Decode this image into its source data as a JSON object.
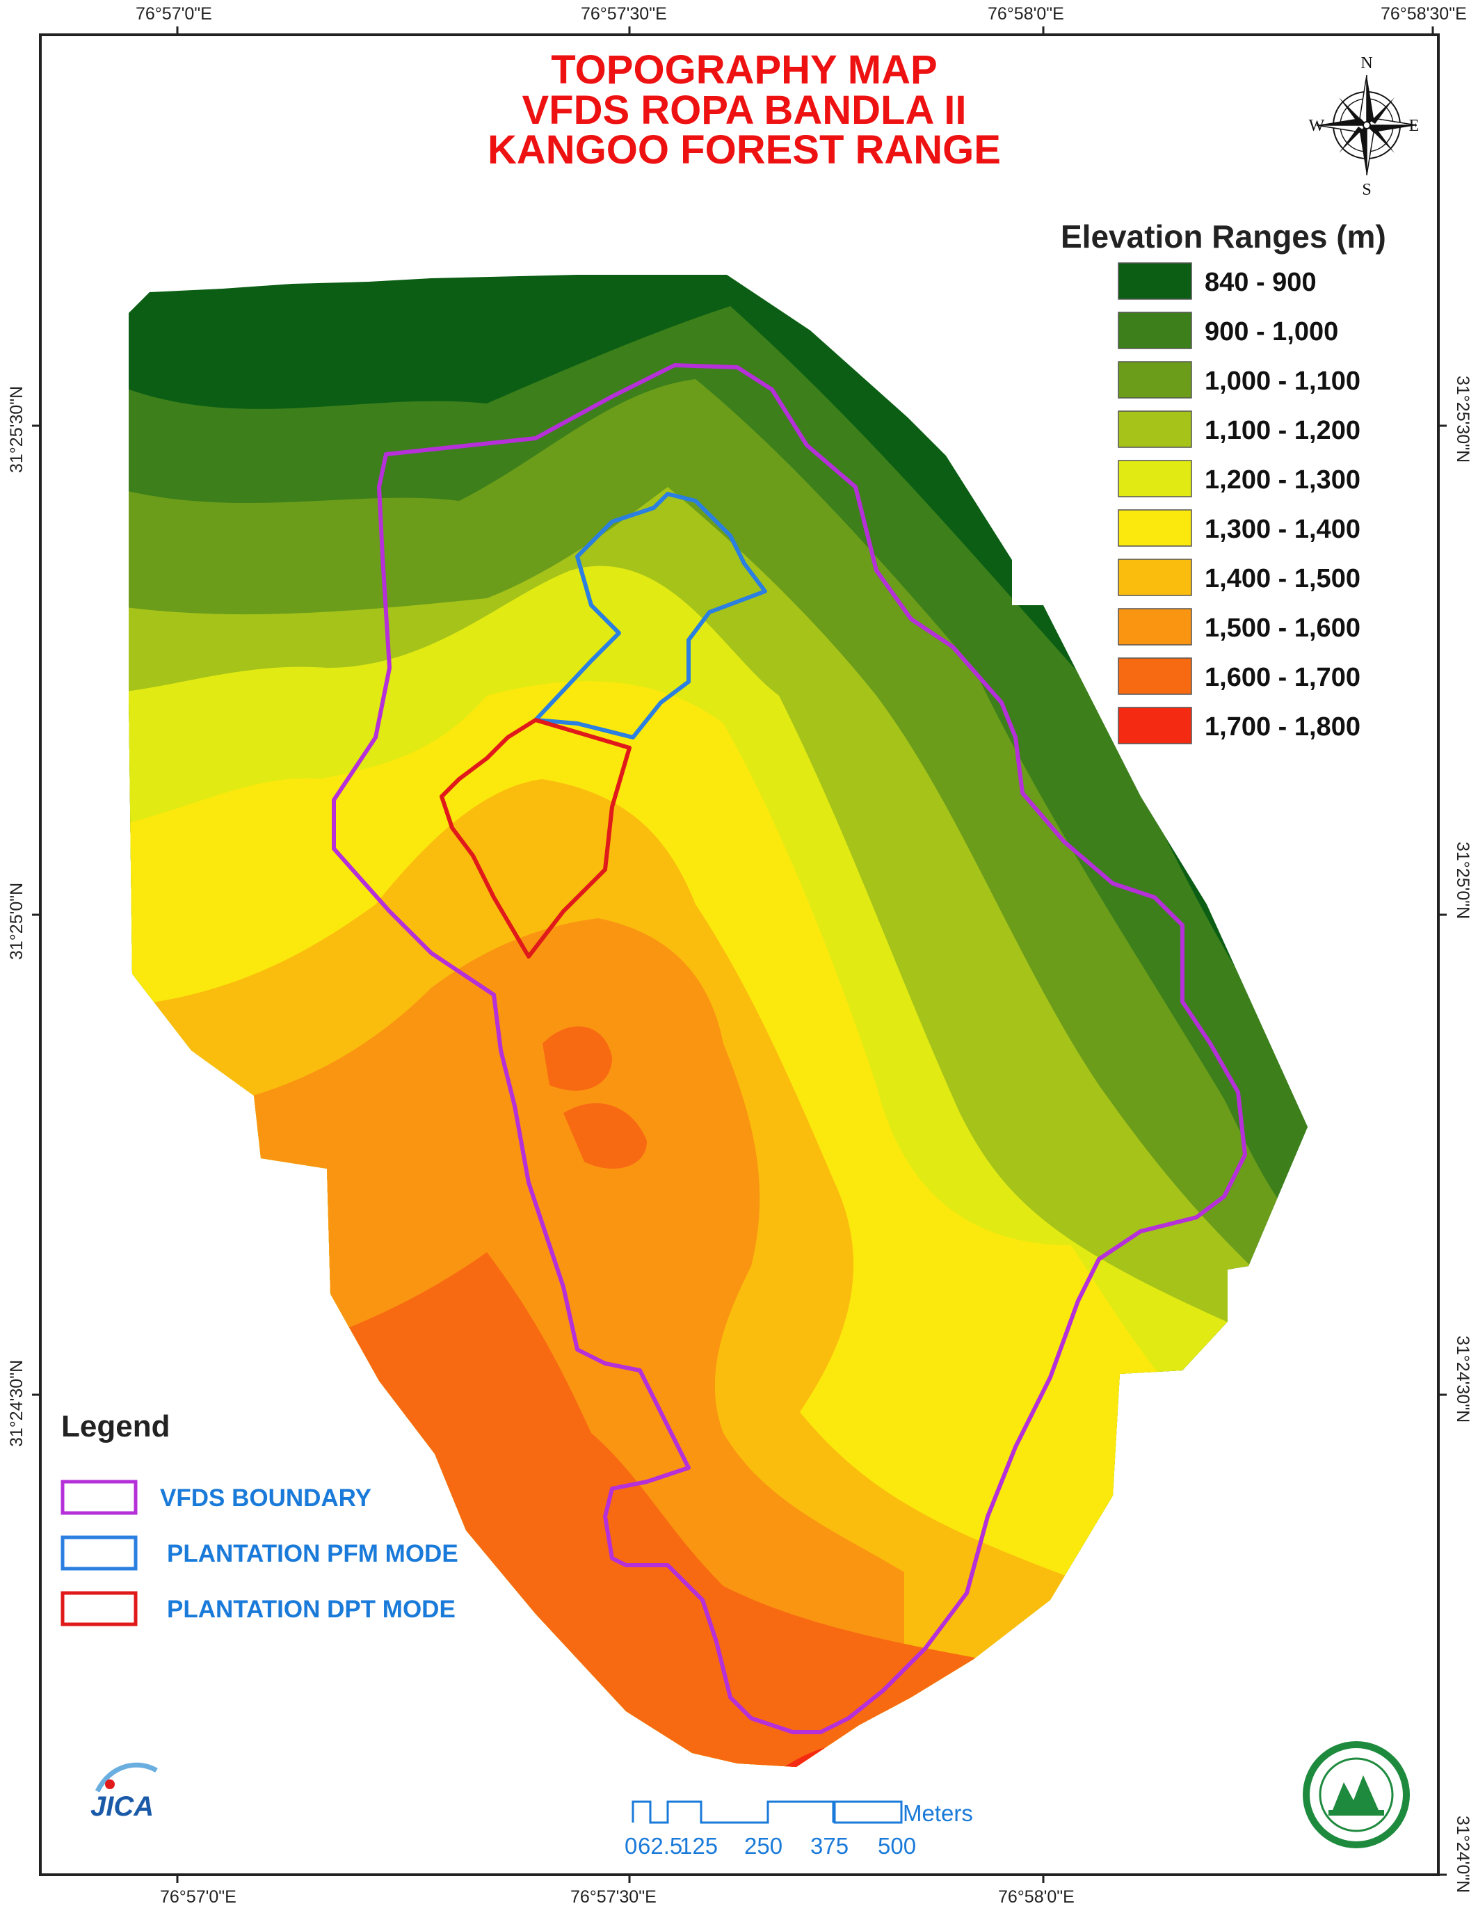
{
  "title": {
    "line1": "TOPOGRAPHY MAP",
    "line2": "VFDS ROPA BANDLA  II",
    "line3": "KANGOO FOREST RANGE"
  },
  "coordinates": {
    "top": [
      "76°57'0\"E",
      "76°57'30\"E",
      "76°58'0\"E",
      "76°58'30\"E"
    ],
    "bottom": [
      "76°57'0\"E",
      "76°57'30\"E",
      "76°58'0\"E"
    ],
    "left": [
      "31°25'30\"N",
      "31°25'0\"N",
      "31°24'30\"N"
    ],
    "right": [
      "31°25'30\"N",
      "31°25'0\"N",
      "31°24'30\"N",
      "31°24'0\"N"
    ]
  },
  "compass": {
    "north": "N",
    "south": "S",
    "east": "E",
    "west": "W"
  },
  "elevation_legend": {
    "heading": "Elevation Ranges (m)",
    "classes": [
      {
        "label": "840 - 900",
        "color": "#0b5e14"
      },
      {
        "label": "900 - 1,000",
        "color": "#3c7f1b"
      },
      {
        "label": "1,000 - 1,100",
        "color": "#6b9d1a"
      },
      {
        "label": "1,100 - 1,200",
        "color": "#a6c31a"
      },
      {
        "label": "1,200 - 1,300",
        "color": "#e1ea12"
      },
      {
        "label": "1,300 - 1,400",
        "color": "#fbe90e"
      },
      {
        "label": "1,400 - 1,500",
        "color": "#fbbd0d"
      },
      {
        "label": "1,500 - 1,600",
        "color": "#fa9512"
      },
      {
        "label": "1,600 - 1,700",
        "color": "#f86a12"
      },
      {
        "label": "1,700 - 1,800",
        "color": "#f52a12"
      }
    ]
  },
  "legend": {
    "heading": "Legend",
    "items": [
      {
        "label": "VFDS BOUNDARY",
        "color": "#b530d8"
      },
      {
        "label": "PLANTATION PFM MODE",
        "color": "#2a7fe0"
      },
      {
        "label": "PLANTATION DPT MODE",
        "color": "#e01a1a"
      }
    ]
  },
  "scale_bar": {
    "unit": "Meters",
    "ticks": [
      "0",
      "62.5",
      "125",
      "250",
      "375",
      "500"
    ]
  },
  "logos": {
    "left": "JICA"
  }
}
